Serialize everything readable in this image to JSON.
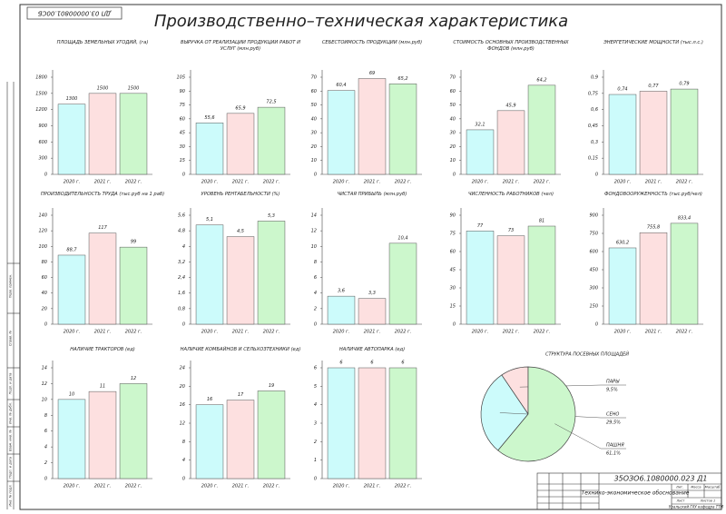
{
  "stamp_code": "ДП 03.00000801.00СБ",
  "title": "Производственно–техническая характеристика",
  "chart_data": [
    {
      "type": "bar",
      "title": "ПЛОЩАДЬ ЗЕМЕЛЬНЫХ УГОДИЙ, (га)",
      "categories": [
        "2020 г.",
        "2021 г.",
        "2022 г."
      ],
      "values": [
        1300,
        1500,
        1500
      ],
      "colors": [
        "#ccfbfb",
        "#fde0e0",
        "#ccf7cc"
      ],
      "ylim": [
        0,
        1800
      ],
      "yticks": [
        0,
        300,
        600,
        900,
        1200,
        1500,
        1800
      ]
    },
    {
      "type": "bar",
      "title": "ВЫРУЧКА ОТ РЕАЛИЗАЦИИ ПРОДУКЦИИ РАБОТ И УСЛУГ (млн.руб)",
      "categories": [
        "2020 г.",
        "2021 г.",
        "2022 г."
      ],
      "values": [
        55.6,
        65.9,
        72.5
      ],
      "value_labels": [
        "55,6",
        "65,9",
        "72,5"
      ],
      "colors": [
        "#ccfbfb",
        "#fde0e0",
        "#ccf7cc"
      ],
      "ylim": [
        0,
        105
      ],
      "yticks": [
        0,
        15,
        30,
        45,
        60,
        75,
        90,
        105
      ]
    },
    {
      "type": "bar",
      "title": "СЕБЕСТОИМОСТЬ ПРОДУКЦИИ (млн.руб)",
      "categories": [
        "2020 г.",
        "2021 г.",
        "2022 г."
      ],
      "values": [
        60.4,
        69,
        65.2
      ],
      "value_labels": [
        "60,4",
        "69",
        "65,2"
      ],
      "colors": [
        "#ccfbfb",
        "#fde0e0",
        "#ccf7cc"
      ],
      "ylim": [
        0,
        70
      ],
      "yticks": [
        0,
        10,
        20,
        30,
        40,
        50,
        60,
        70
      ]
    },
    {
      "type": "bar",
      "title": "СТОИМОСТЬ ОСНОВНЫХ ПРОИЗВОДСТВЕННЫХ ФОНДОВ (млн.руб)",
      "categories": [
        "2020 г.",
        "2021 г.",
        "2022 г."
      ],
      "values": [
        32.1,
        45.9,
        64.2
      ],
      "value_labels": [
        "32,1",
        "45,9",
        "64,2"
      ],
      "colors": [
        "#ccfbfb",
        "#fde0e0",
        "#ccf7cc"
      ],
      "ylim": [
        0,
        70
      ],
      "yticks": [
        0,
        10,
        20,
        30,
        40,
        50,
        60,
        70
      ]
    },
    {
      "type": "bar",
      "title": "ЭНЕРГЕТИЧЕСКИЕ МОЩНОСТИ (тыс.л.с.)",
      "categories": [
        "2020 г.",
        "2021 г.",
        "2022 г."
      ],
      "values": [
        0.74,
        0.77,
        0.79
      ],
      "value_labels": [
        "0,74",
        "0,77",
        "0,79"
      ],
      "colors": [
        "#ccfbfb",
        "#fde0e0",
        "#ccf7cc"
      ],
      "ylim": [
        0,
        0.9
      ],
      "yticks": [
        0,
        {
          "value": 0.15,
          "label": "0,15"
        },
        {
          "value": 0.3,
          "label": "0,3"
        },
        {
          "value": 0.45,
          "label": "0,45"
        },
        {
          "value": 0.6,
          "label": "0,6"
        },
        {
          "value": 0.75,
          "label": "0,75"
        },
        {
          "value": 0.9,
          "label": "0,9"
        }
      ]
    },
    {
      "type": "bar",
      "title": "ПРОИЗВОДИТЕЛЬНОСТЬ ТРУДА (тыс.руб на 1 раб)",
      "categories": [
        "2020 г.",
        "2021 г.",
        "2022 г."
      ],
      "values": [
        88.7,
        117,
        99
      ],
      "value_labels": [
        "88,7",
        "117",
        "99"
      ],
      "colors": [
        "#ccfbfb",
        "#fde0e0",
        "#ccf7cc"
      ],
      "ylim": [
        0,
        140
      ],
      "yticks": [
        0,
        20,
        40,
        60,
        80,
        100,
        120,
        140
      ]
    },
    {
      "type": "bar",
      "title": "УРОВЕНЬ РЕНТАБЕЛЬНОСТИ (%)",
      "categories": [
        "2020 г.",
        "2021 г.",
        "2022 г."
      ],
      "values": [
        5.1,
        4.5,
        5.3
      ],
      "value_labels": [
        "5,1",
        "4,5",
        "5,3"
      ],
      "colors": [
        "#ccfbfb",
        "#fde0e0",
        "#ccf7cc"
      ],
      "ylim": [
        0,
        5.6
      ],
      "yticks": [
        0,
        {
          "value": 0.8,
          "label": "0,8"
        },
        {
          "value": 1.6,
          "label": "1,6"
        },
        {
          "value": 2.4,
          "label": "2,4"
        },
        {
          "value": 3.2,
          "label": "3,2"
        },
        4,
        {
          "value": 4.8,
          "label": "4,8"
        },
        {
          "value": 5.6,
          "label": "5,6"
        }
      ]
    },
    {
      "type": "bar",
      "title": "ЧИСТАЯ ПРИБЫЛЬ (млн.руб)",
      "categories": [
        "2020 г.",
        "2021 г.",
        "2022 г."
      ],
      "values": [
        3.6,
        3.3,
        10.4
      ],
      "value_labels": [
        "3,6",
        "3,3",
        "10,4"
      ],
      "colors": [
        "#ccfbfb",
        "#fde0e0",
        "#ccf7cc"
      ],
      "ylim": [
        0,
        14
      ],
      "yticks": [
        0,
        2,
        4,
        6,
        8,
        10,
        12,
        14
      ]
    },
    {
      "type": "bar",
      "title": "ЧИСЛЕННОСТЬ РАБОТНИКОВ (чел)",
      "categories": [
        "2020 г.",
        "2021 г.",
        "2022 г."
      ],
      "values": [
        77,
        73,
        81
      ],
      "colors": [
        "#ccfbfb",
        "#fde0e0",
        "#ccf7cc"
      ],
      "ylim": [
        0,
        90
      ],
      "yticks": [
        0,
        15,
        30,
        45,
        60,
        75,
        90
      ]
    },
    {
      "type": "bar",
      "title": "ФОНДОВООРУЖЕННОСТЬ (тыс.руб/чел)",
      "categories": [
        "2020 г.",
        "2021 г.",
        "2022 г."
      ],
      "values": [
        630.2,
        755.8,
        833.4
      ],
      "value_labels": [
        "630,2",
        "755,8",
        "833,4"
      ],
      "colors": [
        "#ccfbfb",
        "#fde0e0",
        "#ccf7cc"
      ],
      "ylim": [
        0,
        900
      ],
      "yticks": [
        0,
        150,
        300,
        450,
        600,
        750,
        900
      ]
    },
    {
      "type": "bar",
      "title": "НАЛИЧИЕ ТРАКТОРОВ (ед)",
      "categories": [
        "2020 г.",
        "2021 г.",
        "2022 г."
      ],
      "values": [
        10,
        11,
        12
      ],
      "colors": [
        "#ccfbfb",
        "#fde0e0",
        "#ccf7cc"
      ],
      "ylim": [
        0,
        14
      ],
      "yticks": [
        0,
        2,
        4,
        6,
        8,
        10,
        12,
        14
      ]
    },
    {
      "type": "bar",
      "title": "НАЛИЧИЕ КОМБАЙНОВ И СЕЛЬХОЗТЕХНИКИ (ед)",
      "categories": [
        "2020 г.",
        "2021 г.",
        "2022 г."
      ],
      "values": [
        16,
        17,
        19
      ],
      "colors": [
        "#ccfbfb",
        "#fde0e0",
        "#ccf7cc"
      ],
      "ylim": [
        0,
        24
      ],
      "yticks": [
        0,
        4,
        8,
        12,
        16,
        20,
        24
      ]
    },
    {
      "type": "bar",
      "title": "НАЛИЧИЕ АВТОПАРКА (ед)",
      "categories": [
        "2020 г.",
        "2021 г.",
        "2022 г."
      ],
      "values": [
        6,
        6,
        6
      ],
      "colors": [
        "#ccfbfb",
        "#fde0e0",
        "#ccf7cc"
      ],
      "ylim": [
        0,
        6
      ],
      "yticks": [
        0,
        1,
        2,
        3,
        4,
        5,
        6
      ]
    },
    {
      "type": "pie",
      "title": "СТРУКТУРА ПОСЕВНЫХ ПЛОЩАДЕЙ",
      "categories": [
        "ПАРЫ",
        "СЕНО",
        "ПАШНЯ"
      ],
      "values": [
        9.5,
        29.5,
        61.1
      ],
      "value_labels": [
        "9,5%",
        "29,5%",
        "61,1%"
      ],
      "colors": [
        "#fde0e0",
        "#ccfbfb",
        "#ccf7cc"
      ]
    }
  ],
  "title_block": {
    "code": "35ОЗО6.1080000.023 Д1",
    "name": "Технико-экономическое обоснование",
    "org": "Уральский ГАУ кафедра ТТМ",
    "headers": [
      "Лит.",
      "Масса",
      "Масштаб"
    ],
    "sheet": "Лист",
    "sheets": "Листов 1"
  },
  "margin": [
    "Перв. примен.",
    "Справ. №",
    "Подп. и дата",
    "Инв. № дубл.",
    "Взам. инв. №",
    "Подп. и дата",
    "Инв. № подл."
  ]
}
